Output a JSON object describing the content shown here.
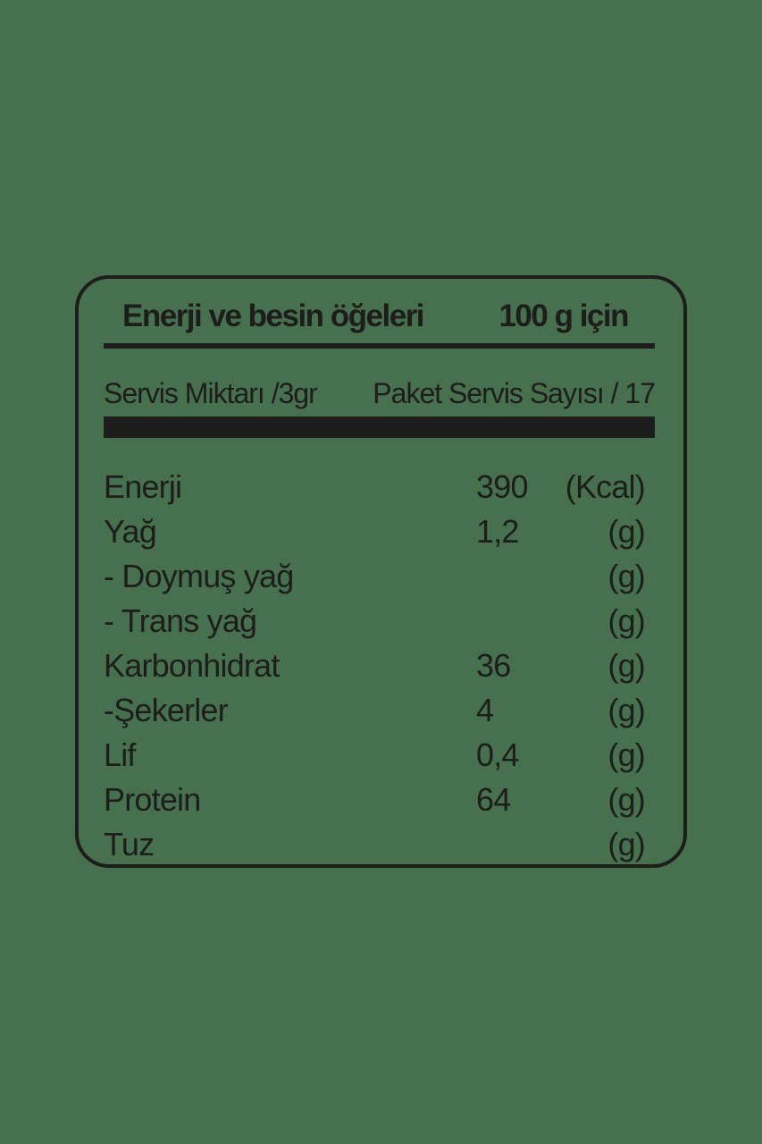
{
  "colors": {
    "background": "#47714E",
    "ink": "#1D1D1B"
  },
  "label": {
    "header": {
      "title": "Enerji ve besin öğeleri",
      "amount": "100 g için"
    },
    "serving": {
      "size": "Servis Miktarı /3gr",
      "per_pack": "Paket Servis Sayısı / 17"
    },
    "rows": [
      {
        "name": "Enerji",
        "value": "390",
        "unit": "(Kcal)"
      },
      {
        "name": "Yağ",
        "value": "1,2",
        "unit": "(g)"
      },
      {
        "name": "- Doymuş yağ",
        "value": "",
        "unit": "(g)"
      },
      {
        "name": "- Trans yağ",
        "value": "",
        "unit": "(g)"
      },
      {
        "name": "Karbonhidrat",
        "value": "36",
        "unit": "(g)"
      },
      {
        "name": "-Şekerler",
        "value": "4",
        "unit": "(g)"
      },
      {
        "name": "Lif",
        "value": "0,4",
        "unit": "(g)"
      },
      {
        "name": "Protein",
        "value": "64",
        "unit": "(g)"
      },
      {
        "name": "Tuz",
        "value": "",
        "unit": "(g)"
      }
    ]
  }
}
